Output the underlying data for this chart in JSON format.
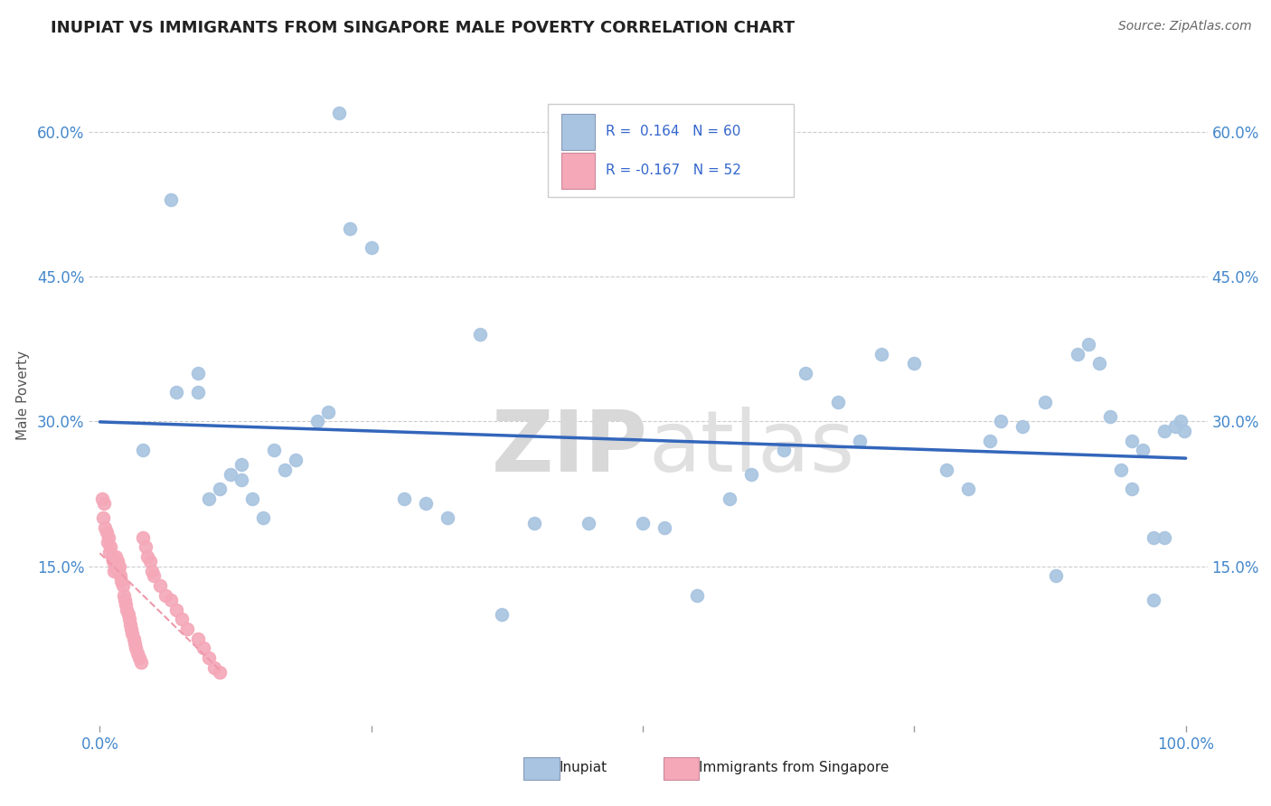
{
  "title": "INUPIAT VS IMMIGRANTS FROM SINGAPORE MALE POVERTY CORRELATION CHART",
  "source": "Source: ZipAtlas.com",
  "ylabel": "Male Poverty",
  "watermark_zip": "ZIP",
  "watermark_atlas": "atlas",
  "background_color": "#ffffff",
  "inupiat_color": "#a8c4e0",
  "singapore_color": "#f4a8b8",
  "trend_inupiat_color": "#3366bb",
  "trend_singapore_color": "#ee99aa",
  "grid_color": "#cccccc",
  "inupiat_x": [
    0.065,
    0.22,
    0.23,
    0.25,
    0.35,
    0.09,
    0.09,
    0.5,
    0.04,
    0.07,
    0.1,
    0.11,
    0.12,
    0.13,
    0.13,
    0.14,
    0.15,
    0.16,
    0.17,
    0.18,
    0.2,
    0.21,
    0.28,
    0.3,
    0.32,
    0.37,
    0.4,
    0.45,
    0.52,
    0.55,
    0.58,
    0.6,
    0.63,
    0.65,
    0.68,
    0.7,
    0.72,
    0.75,
    0.78,
    0.8,
    0.82,
    0.83,
    0.85,
    0.87,
    0.88,
    0.9,
    0.91,
    0.92,
    0.93,
    0.94,
    0.95,
    0.95,
    0.96,
    0.97,
    0.97,
    0.98,
    0.98,
    0.99,
    0.995,
    0.999
  ],
  "inupiat_y": [
    0.53,
    0.62,
    0.5,
    0.48,
    0.39,
    0.35,
    0.33,
    0.195,
    0.27,
    0.33,
    0.22,
    0.23,
    0.245,
    0.24,
    0.255,
    0.22,
    0.2,
    0.27,
    0.25,
    0.26,
    0.3,
    0.31,
    0.22,
    0.215,
    0.2,
    0.1,
    0.195,
    0.195,
    0.19,
    0.12,
    0.22,
    0.245,
    0.27,
    0.35,
    0.32,
    0.28,
    0.37,
    0.36,
    0.25,
    0.23,
    0.28,
    0.3,
    0.295,
    0.32,
    0.14,
    0.37,
    0.38,
    0.36,
    0.305,
    0.25,
    0.28,
    0.23,
    0.27,
    0.18,
    0.115,
    0.29,
    0.18,
    0.295,
    0.3,
    0.29
  ],
  "singapore_x": [
    0.002,
    0.003,
    0.004,
    0.005,
    0.006,
    0.007,
    0.008,
    0.009,
    0.01,
    0.011,
    0.012,
    0.013,
    0.014,
    0.015,
    0.016,
    0.017,
    0.018,
    0.019,
    0.02,
    0.021,
    0.022,
    0.023,
    0.024,
    0.025,
    0.026,
    0.027,
    0.028,
    0.029,
    0.03,
    0.031,
    0.032,
    0.033,
    0.035,
    0.036,
    0.038,
    0.04,
    0.042,
    0.044,
    0.046,
    0.048,
    0.05,
    0.055,
    0.06,
    0.065,
    0.07,
    0.075,
    0.08,
    0.09,
    0.095,
    0.1,
    0.105,
    0.11
  ],
  "singapore_y": [
    0.22,
    0.2,
    0.215,
    0.19,
    0.185,
    0.175,
    0.18,
    0.165,
    0.17,
    0.16,
    0.155,
    0.145,
    0.15,
    0.16,
    0.155,
    0.145,
    0.15,
    0.14,
    0.135,
    0.13,
    0.12,
    0.115,
    0.11,
    0.105,
    0.1,
    0.095,
    0.09,
    0.085,
    0.08,
    0.075,
    0.07,
    0.065,
    0.06,
    0.055,
    0.05,
    0.18,
    0.17,
    0.16,
    0.155,
    0.145,
    0.14,
    0.13,
    0.12,
    0.115,
    0.105,
    0.095,
    0.085,
    0.075,
    0.065,
    0.055,
    0.045,
    0.04
  ],
  "xlim": [
    -0.01,
    1.02
  ],
  "ylim": [
    -0.015,
    0.67
  ],
  "ytick_vals": [
    0.15,
    0.3,
    0.45,
    0.6
  ],
  "ytick_labels": [
    "15.0%",
    "30.0%",
    "45.0%",
    "60.0%"
  ],
  "xtick_vals": [
    0.0,
    0.25,
    0.5,
    0.75,
    1.0
  ],
  "xtick_labels_bottom": [
    "0.0%",
    "",
    "",
    "",
    "100.0%"
  ]
}
